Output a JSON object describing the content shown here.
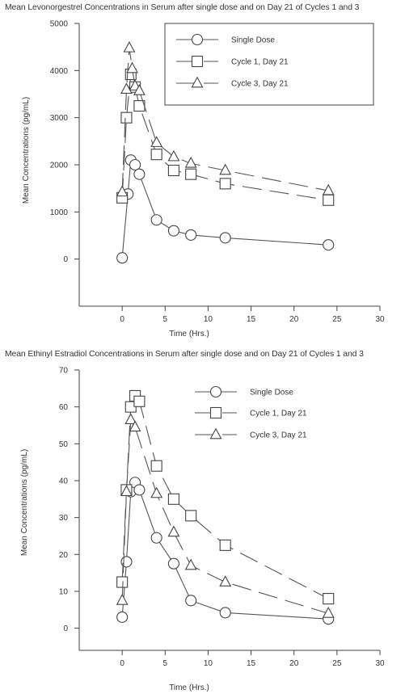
{
  "chart_data": [
    {
      "type": "line",
      "title": "Mean Levonorgestrel Concentrations in Serum after single dose and on Day 21 of Cycles 1 and 3",
      "xlabel": "Time (Hrs.)",
      "ylabel": "Mean Concentrations (pg/mL)",
      "xlim": [
        -5,
        30
      ],
      "ylim": [
        -1000,
        5000
      ],
      "xticks": [
        "0",
        "5",
        "10",
        "15",
        "20",
        "25",
        "30"
      ],
      "yticks": [
        "0",
        "1000",
        "2000",
        "3000",
        "4000",
        "5000"
      ],
      "legend_position": "top-right",
      "series": [
        {
          "name": "Single Dose",
          "marker": "circle",
          "dash": "solid",
          "x": [
            0,
            0.67,
            1,
            1.5,
            2,
            4,
            6,
            8,
            12,
            24
          ],
          "y": [
            25,
            1380,
            2100,
            2000,
            1800,
            830,
            600,
            510,
            450,
            300
          ]
        },
        {
          "name": "Cycle 1, Day 21",
          "marker": "square",
          "dash": "long",
          "x": [
            0,
            0.5,
            1,
            1.5,
            2,
            4,
            6,
            8,
            12,
            24
          ],
          "y": [
            1300,
            3000,
            3920,
            3650,
            3250,
            2220,
            1880,
            1800,
            1600,
            1250
          ]
        },
        {
          "name": "Cycle 3, Day 21",
          "marker": "triangle",
          "dash": "long",
          "x": [
            0,
            0.5,
            0.83,
            1.17,
            1.5,
            2,
            4,
            6,
            8,
            12,
            24
          ],
          "y": [
            1420,
            3600,
            4480,
            4040,
            3670,
            3570,
            2470,
            2170,
            2030,
            1880,
            1450
          ]
        }
      ]
    },
    {
      "type": "line",
      "title": "Mean Ethinyl Estradiol Concentrations in Serum after single dose and on Day 21 of Cycles 1 and 3",
      "xlabel": "Time (Hrs.)",
      "ylabel": "Mean Concentrations (pg/mL)",
      "xlim": [
        -5,
        30
      ],
      "ylim": [
        -6,
        70
      ],
      "xticks": [
        "0",
        "5",
        "10",
        "15",
        "20",
        "25",
        "30"
      ],
      "yticks": [
        "0",
        "10",
        "20",
        "30",
        "40",
        "50",
        "60",
        "70"
      ],
      "legend_position": "top-right",
      "series": [
        {
          "name": "Single Dose",
          "marker": "circle",
          "dash": "solid",
          "x": [
            0,
            0.5,
            1,
            1.5,
            2,
            4,
            6,
            8,
            12,
            24
          ],
          "y": [
            3,
            18,
            37,
            39.5,
            37.5,
            24.5,
            17.5,
            7.5,
            4.2,
            2.5
          ]
        },
        {
          "name": "Cycle 1, Day 21",
          "marker": "square",
          "dash": "long",
          "x": [
            0,
            0.5,
            1,
            1.5,
            2,
            4,
            6,
            8,
            12,
            24
          ],
          "y": [
            12.5,
            37.5,
            60,
            63,
            61.5,
            44,
            35,
            30.5,
            22.5,
            8
          ]
        },
        {
          "name": "Cycle 3, Day 21",
          "marker": "triangle",
          "dash": "long",
          "x": [
            0,
            0.5,
            1,
            1.5,
            2,
            4,
            6,
            8,
            12,
            24
          ],
          "y": [
            7.5,
            37,
            56.5,
            54.5,
            null,
            36.5,
            26,
            17,
            12.5,
            4
          ]
        }
      ]
    }
  ]
}
